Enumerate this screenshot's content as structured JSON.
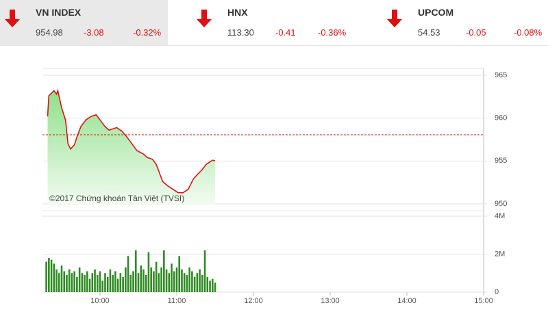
{
  "indices": [
    {
      "name": "VN INDEX",
      "value": "954.98",
      "change": "-3.08",
      "percent": "-0.32%"
    },
    {
      "name": "HNX",
      "value": "113.30",
      "change": "-0.41",
      "percent": "-0.36%"
    },
    {
      "name": "UPCOM",
      "value": "54.53",
      "change": "-0.05",
      "percent": "-0.08%"
    }
  ],
  "chart_data": [
    {
      "type": "line",
      "color": "#e01010",
      "annotation": "©2017 Chứng khoán Tân Việt (TVSI)",
      "reference_line": 958.06,
      "x": [
        559,
        560,
        564,
        566,
        567,
        570,
        573,
        575,
        577,
        580,
        582,
        585,
        589,
        593,
        597,
        600,
        604,
        607,
        613,
        617,
        621,
        625,
        629,
        634,
        637,
        641,
        644,
        647,
        649,
        653,
        657,
        661,
        665,
        669,
        673,
        676,
        680,
        683,
        685,
        688,
        690
      ],
      "values": [
        960.2,
        962.6,
        963.2,
        962.8,
        963.2,
        961.2,
        959.8,
        957.0,
        956.4,
        956.9,
        957.8,
        959.0,
        959.8,
        960.2,
        960.4,
        959.8,
        959.0,
        958.6,
        958.9,
        958.5,
        957.8,
        957.0,
        956.2,
        955.8,
        955.4,
        955.2,
        954.6,
        953.4,
        952.6,
        952.1,
        951.7,
        951.3,
        951.3,
        951.7,
        952.9,
        953.4,
        954.0,
        954.6,
        954.8,
        955.1,
        955.0
      ],
      "xlim": [
        555,
        900
      ],
      "ylim": [
        950,
        965
      ],
      "yticks": [
        950,
        955,
        960,
        965
      ]
    },
    {
      "type": "bar",
      "color": "#2e8b22",
      "x": [
        558,
        560,
        562,
        564,
        566,
        568,
        570,
        572,
        574,
        576,
        578,
        580,
        582,
        584,
        586,
        588,
        590,
        592,
        594,
        596,
        598,
        600,
        602,
        604,
        606,
        608,
        610,
        612,
        614,
        616,
        618,
        620,
        622,
        624,
        626,
        628,
        630,
        632,
        634,
        636,
        638,
        640,
        642,
        644,
        646,
        648,
        650,
        652,
        654,
        656,
        658,
        660,
        662,
        664,
        666,
        668,
        670,
        672,
        674,
        676,
        678,
        680,
        682,
        684,
        686,
        688,
        690
      ],
      "values": [
        1600000,
        1800000,
        1700000,
        1500000,
        1200000,
        1000000,
        1400000,
        1100000,
        900000,
        1200000,
        1000000,
        1100000,
        800000,
        1300000,
        1000000,
        900000,
        1100000,
        700000,
        1000000,
        1200000,
        900000,
        1100000,
        600000,
        1000000,
        800000,
        1200000,
        900000,
        1100000,
        700000,
        1000000,
        800000,
        1300000,
        1900000,
        900000,
        1100000,
        2200000,
        1000000,
        1400000,
        1200000,
        900000,
        2100000,
        1300000,
        1100000,
        1600000,
        1000000,
        1300000,
        2200000,
        1200000,
        1000000,
        1500000,
        1100000,
        1300000,
        1900000,
        1200000,
        1000000,
        900000,
        1300000,
        1100000,
        800000,
        1000000,
        1200000,
        900000,
        2200000,
        800000,
        600000,
        700000,
        500000
      ],
      "xlim": [
        555,
        900
      ],
      "ylim": [
        0,
        4000000
      ],
      "yticks": [
        0,
        {
          "value": 2000000,
          "label": "2M"
        },
        {
          "value": 4000000,
          "label": "4M"
        }
      ],
      "xticks": [
        {
          "value": 600,
          "label": "10:00"
        },
        {
          "value": 660,
          "label": "11:00"
        },
        {
          "value": 720,
          "label": "12:00"
        },
        {
          "value": 780,
          "label": "13:00"
        },
        {
          "value": 840,
          "label": "14:00"
        },
        {
          "value": 900,
          "label": "15:00"
        }
      ]
    }
  ]
}
